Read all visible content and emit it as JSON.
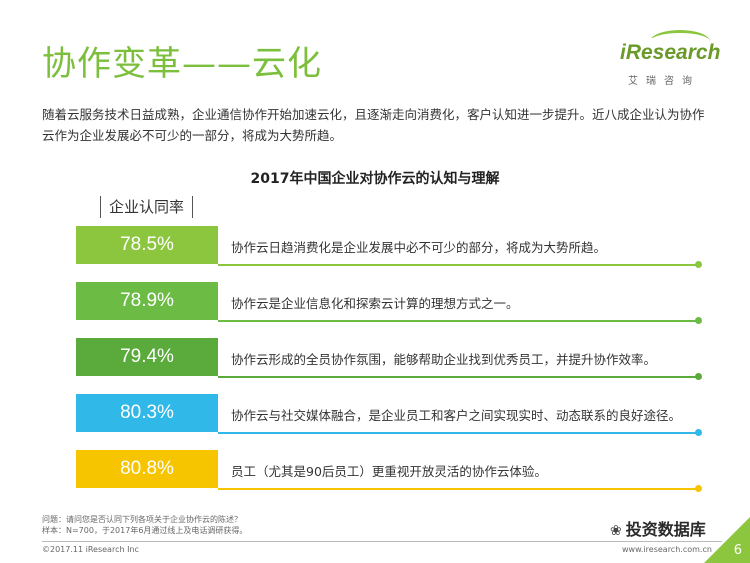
{
  "page": {
    "title": "协作变革——云化",
    "intro": "随着云服务技术日益成熟，企业通信协作开始加速云化，且逐渐走向消费化，客户认知进一步提升。近八成企业认为协作云作为企业发展必不可少的一部分，将成为大势所趋。",
    "logo_text": "iResearch",
    "logo_sub": "艾瑞咨询",
    "footnote_line1": "问题：请问您是否认同下列各项关于企业协作云的陈述？",
    "footnote_line2": "样本：N=700，于2017年6月通过线上及电话调研获得。",
    "copyright": "©2017.11 iResearch Inc",
    "website": "www.iresearch.com.cn",
    "watermark": "投资数据库",
    "page_number": "6"
  },
  "chart_data": {
    "type": "bar",
    "title": "2017年中国企业对协作云的认知与理解",
    "legend_label": "企业认同率",
    "categories": [
      "协作云日趋消费化是企业发展中必不可少的部分，将成为大势所趋。",
      "协作云是企业信息化和探索云计算的理想方式之一。",
      "协作云形成的全员协作氛围，能够帮助企业找到优秀员工，并提升协作效率。",
      "协作云与社交媒体融合，是企业员工和客户之间实现实时、动态联系的良好途径。",
      "员工（尤其是90后员工）更重视开放灵活的协作云体验。"
    ],
    "values": [
      78.5,
      78.9,
      79.4,
      80.3,
      80.8
    ],
    "value_labels": [
      "78.5%",
      "78.9%",
      "79.4%",
      "80.3%",
      "80.8%"
    ],
    "colors": [
      "#8cc63f",
      "#6cbb45",
      "#5aab3c",
      "#2fb8e8",
      "#f6c500"
    ]
  }
}
